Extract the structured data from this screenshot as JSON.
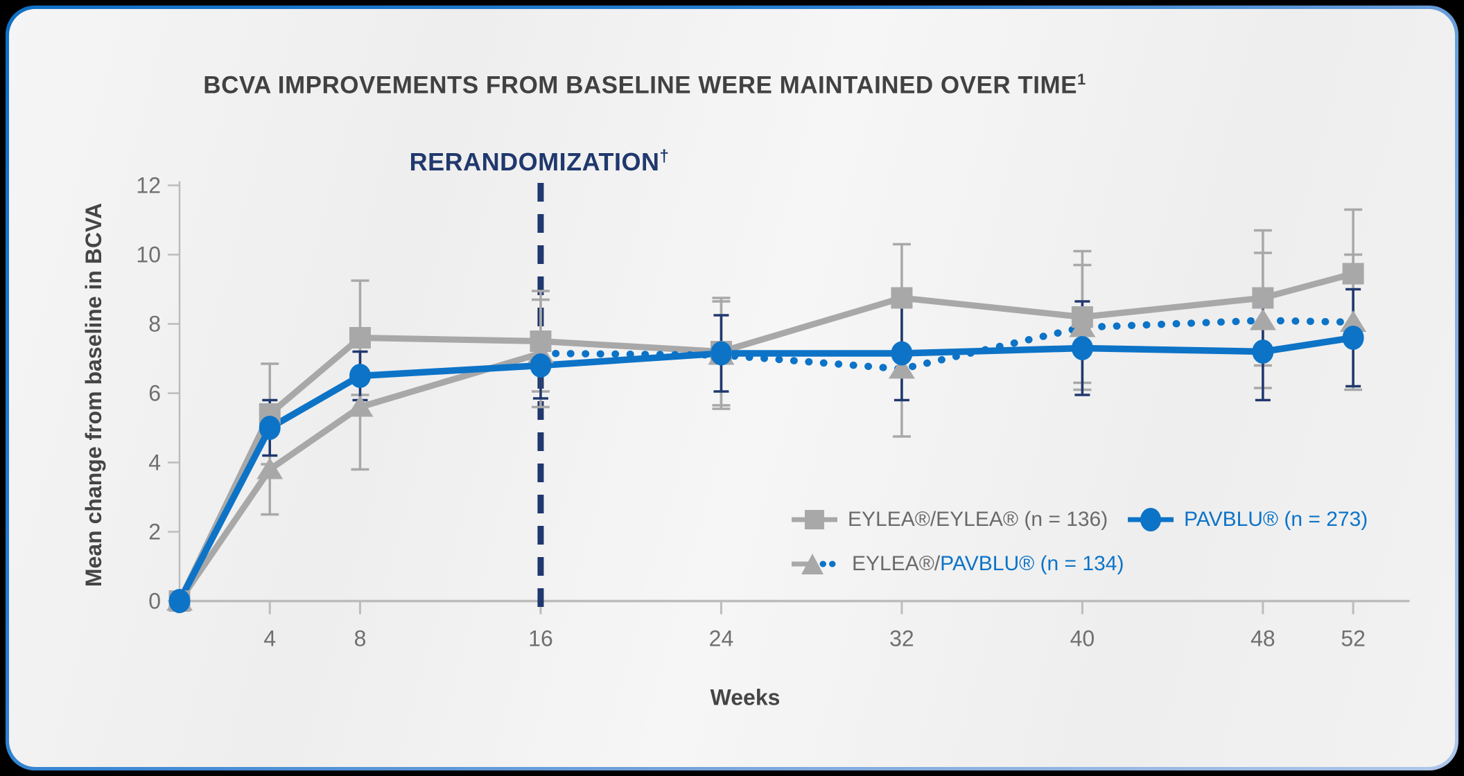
{
  "page": {
    "background": "#000000"
  },
  "card": {
    "background": "#f2f2f2",
    "border_top_color": "#0f6fc4",
    "border_bottom_color": "#aec6e8"
  },
  "title": "BCVA IMPROVEMENTS FROM BASELINE WERE MAINTAINED OVER TIME",
  "title_sup": "1",
  "rerandomization_label": "RERANDOMIZATION",
  "rerandomization_sup": "†",
  "colors": {
    "blue": "#0c73c7",
    "gray": "#a8a8a8",
    "navy": "#20386e",
    "axis_line": "#bcbcbc",
    "tick_text": "#6f6f6f",
    "heading_text": "#414141",
    "axis_title_text": "#454545",
    "legend_gray_text": "#6a6a6a"
  },
  "axes": {
    "x": {
      "label": "Weeks",
      "ticks": [
        4,
        8,
        16,
        24,
        32,
        40,
        48,
        52
      ],
      "min": 0,
      "max": 54.5
    },
    "y": {
      "label": "Mean change from baseline in BCVA",
      "ticks": [
        0,
        2,
        4,
        6,
        8,
        10,
        12
      ],
      "min": 0,
      "max": 12
    }
  },
  "legend": {
    "items": [
      {
        "label": "EYLEA®/EYLEA® (n = 136)",
        "marker": "square",
        "color": "#a8a8a8"
      },
      {
        "label": "PAVBLU® (n = 273)",
        "marker": "circle",
        "color": "#0c73c7"
      },
      {
        "label_prefix": "EYLEA®/",
        "label_main": "PAVBLU® (n = 134)",
        "marker": "triangle-dotted",
        "colors": [
          "#a8a8a8",
          "#0c73c7"
        ]
      }
    ]
  },
  "chart_data": {
    "type": "line",
    "title": "BCVA IMPROVEMENTS FROM BASELINE WERE MAINTAINED OVER TIME¹",
    "xlabel": "Weeks",
    "ylabel": "Mean change from baseline in BCVA",
    "x_weeks": [
      0,
      4,
      8,
      16,
      24,
      32,
      40,
      48,
      52
    ],
    "ylim": [
      0,
      12
    ],
    "rerandomization_week": 16,
    "legend_position": "inside lower right",
    "series": [
      {
        "name": "EYLEA®/EYLEA®",
        "n": 136,
        "marker": "square",
        "line": "solid",
        "color": "#a8a8a8",
        "error_color": "#a8a8a8",
        "values": [
          0,
          5.4,
          7.6,
          7.5,
          7.2,
          8.75,
          8.2,
          8.75,
          9.45
        ],
        "errors": [
          0,
          1.45,
          1.65,
          1.45,
          1.55,
          1.55,
          1.9,
          1.95,
          1.85
        ]
      },
      {
        "name": "PAVBLU®",
        "n": 273,
        "marker": "circle",
        "line": "solid",
        "color": "#0c73c7",
        "error_color": "#20386e",
        "values": [
          0,
          5.0,
          6.5,
          6.8,
          7.15,
          7.15,
          7.3,
          7.2,
          7.6
        ],
        "errors": [
          0,
          0.8,
          0.7,
          0.95,
          1.1,
          1.35,
          1.35,
          1.4,
          1.4
        ]
      },
      {
        "name": "EYLEA®/PAVBLU®",
        "n": 134,
        "marker": "triangle",
        "line": "solid-then-dotted",
        "solid_until_week": 16,
        "color": "#a8a8a8",
        "dotted_color": "#0c73c7",
        "error_color": "#a8a8a8",
        "values": [
          0,
          3.8,
          5.6,
          7.15,
          7.1,
          6.7,
          7.9,
          8.1,
          8.05
        ],
        "errors": [
          0,
          1.3,
          1.8,
          1.55,
          1.55,
          1.95,
          1.8,
          1.95,
          1.95
        ]
      }
    ]
  }
}
